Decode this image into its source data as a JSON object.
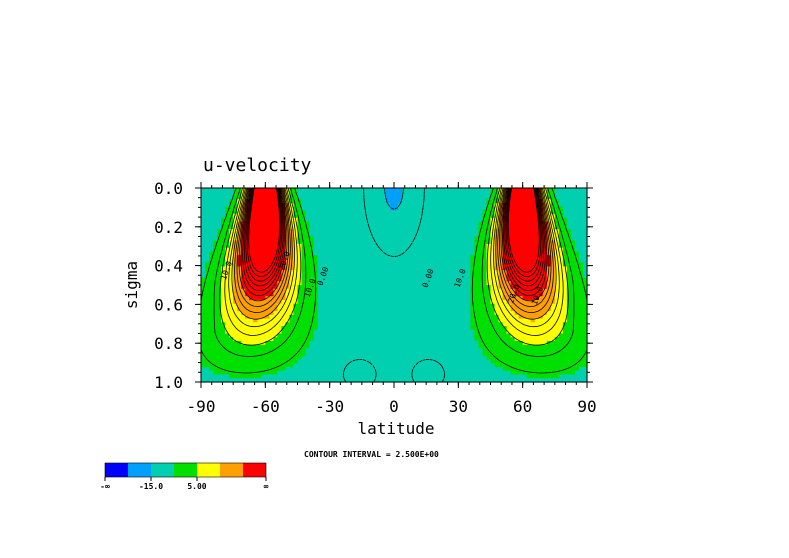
{
  "chart_data": {
    "type": "contour",
    "title": "u-velocity",
    "xlabel": "latitude",
    "ylabel": "sigma",
    "xlim": [
      -90,
      90
    ],
    "ylim": [
      0.0,
      1.0
    ],
    "y_inverted": true,
    "x_ticks": [
      "-90",
      "-60",
      "-30",
      "0",
      "30",
      "60",
      "90"
    ],
    "x_tick_values": [
      -90,
      -60,
      -30,
      0,
      30,
      60,
      90
    ],
    "y_ticks": [
      "0.0",
      "0.2",
      "0.4",
      "0.6",
      "0.8",
      "1.0"
    ],
    "y_tick_values": [
      0.0,
      0.2,
      0.4,
      0.6,
      0.8,
      1.0
    ],
    "contour_interval_text": "CONTOUR INTERVAL = 2.500E+00",
    "contour_labels": [
      {
        "text": "10.0",
        "lat": -77,
        "sigma": 0.43
      },
      {
        "text": "20.0",
        "lat": -50,
        "sigma": 0.38
      },
      {
        "text": "10.0",
        "lat": -38,
        "sigma": 0.52
      },
      {
        "text": "0.00",
        "lat": -32,
        "sigma": 0.46
      },
      {
        "text": "0.00",
        "lat": 17,
        "sigma": 0.47
      },
      {
        "text": "10.0",
        "lat": 32,
        "sigma": 0.47
      },
      {
        "text": "20.0",
        "lat": 57,
        "sigma": 0.55
      },
      {
        "text": "10.0",
        "lat": 68,
        "sigma": 0.56
      }
    ],
    "colorbar": {
      "colors": [
        "#0000ff",
        "#00a0ff",
        "#00d0b0",
        "#00e000",
        "#ffff00",
        "#ffa000",
        "#ff0000"
      ],
      "tick_labels": [
        "-∞",
        "-15.0",
        "5.00",
        "∞"
      ]
    },
    "jets": [
      {
        "lat": -60,
        "sigma_core": 0.06,
        "max": 32
      },
      {
        "lat": 60,
        "sigma_core": 0.06,
        "max": 32
      }
    ]
  }
}
